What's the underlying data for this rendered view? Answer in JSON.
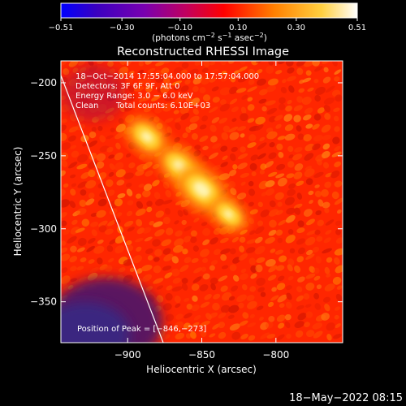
{
  "chart_data": {
    "type": "heatmap",
    "title": "Reconstructed RHESSI Image",
    "xlabel": "Heliocentric X (arcsec)",
    "ylabel": "Heliocentric Y (arcsec)",
    "xlim": [
      -945,
      -755
    ],
    "ylim": [
      -378,
      -185
    ],
    "x_ticks": [
      -900,
      -850,
      -800
    ],
    "x_tick_labels": [
      "−900",
      "−850",
      "−800"
    ],
    "y_ticks": [
      -200,
      -250,
      -300,
      -350
    ],
    "y_tick_labels": [
      "−200",
      "−250",
      "−300",
      "−350"
    ],
    "colorbar": {
      "colormap": "red-temperature",
      "range": [
        -0.51,
        0.51
      ],
      "tick_values": [
        -0.51,
        -0.3,
        -0.1,
        0.1,
        0.3,
        0.51
      ],
      "tick_labels": [
        "−0.51",
        "−0.30",
        "−0.10",
        "0.10",
        "0.30",
        "0.51"
      ],
      "unit_prefix": "(photons cm",
      "unit_exp1": "−2",
      "unit_mid1": " s",
      "unit_exp2": "−1",
      "unit_mid2": " asec",
      "unit_exp3": "−2",
      "unit_suffix": ")"
    },
    "annotations": {
      "line1": "18−Oct−2014 17:55:04.000 to 17:57:04.000",
      "line2": "Detectors: 3F 6F 9F, Att 0",
      "line3": "Energy Range: 3.0 − 6.0 keV",
      "line4_left": "Clean",
      "line4_right": "Total counts: 6.10E+03",
      "peak": "Position of Peak = [−846,−273]"
    },
    "sources": [
      {
        "x": -887,
        "y": -237,
        "intensity": 0.42
      },
      {
        "x": -865,
        "y": -257,
        "intensity": 0.44
      },
      {
        "x": -850,
        "y": -273,
        "intensity": 0.51
      },
      {
        "x": -832,
        "y": -290,
        "intensity": 0.38
      }
    ],
    "limb_line": {
      "x": [
        -945,
        -876
      ],
      "y": [
        -195,
        -378
      ]
    },
    "grid": false
  },
  "footer": {
    "timestamp": "18−May−2022 08:15"
  },
  "colors": {
    "background": "#000000",
    "foreground": "#ffffff",
    "colormap_stops": [
      "#0000ff",
      "#3a00c0",
      "#7800b0",
      "#c00060",
      "#ff0000",
      "#ff8000",
      "#ffd040",
      "#ffffff"
    ]
  }
}
